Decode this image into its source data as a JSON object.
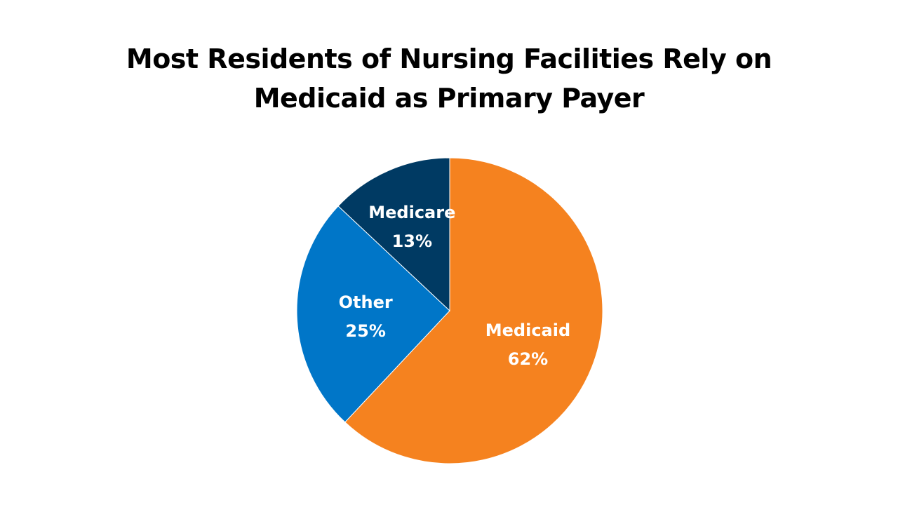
{
  "chart_data": {
    "type": "pie",
    "title_lines": [
      "Most Residents of Nursing Facilities Rely on",
      "Medicaid as Primary Payer"
    ],
    "start": "top",
    "direction": "clockwise",
    "slices": [
      {
        "label": "Medicaid",
        "value": 62,
        "value_label": "62%",
        "color": "#F5821F"
      },
      {
        "label": "Other",
        "value": 25,
        "value_label": "25%",
        "color": "#0076C8"
      },
      {
        "label": "Medicare",
        "value": 13,
        "value_label": "13%",
        "color": "#003A63"
      }
    ],
    "legend": "none"
  }
}
